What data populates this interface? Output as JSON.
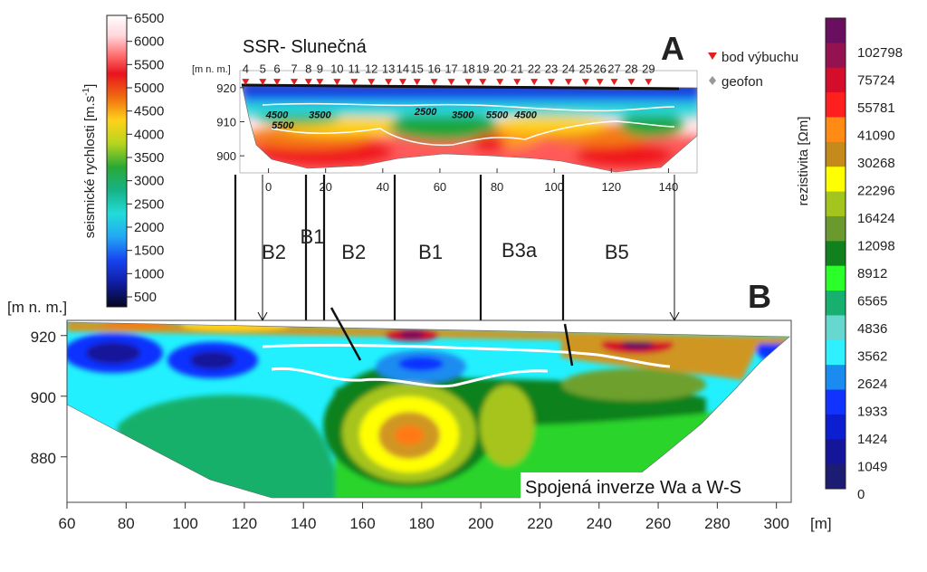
{
  "chart_data": [
    {
      "type": "heatmap",
      "panel": "A",
      "title": "SSR- Slunečná",
      "ylabel": "[m n. m.]",
      "yticks": [
        920,
        910,
        900
      ],
      "xticks": [
        0,
        20,
        40,
        60,
        80,
        100,
        120,
        140
      ],
      "xlim": [
        -10,
        150
      ],
      "ylim": [
        895,
        925
      ],
      "shot_points": [
        "4",
        "5",
        "6",
        "7",
        "8",
        "9",
        "10",
        "11",
        "12",
        "13",
        "14",
        "15",
        "16",
        "17",
        "18",
        "19",
        "20",
        "21",
        "22",
        "23",
        "24",
        "25",
        "26",
        "27",
        "28",
        "29"
      ],
      "shot_point_x": [
        -8,
        -2,
        3,
        9,
        14,
        18,
        24,
        30,
        36,
        42,
        47,
        52,
        58,
        64,
        70,
        75,
        81,
        87,
        93,
        99,
        105,
        111,
        116,
        121,
        127,
        133
      ],
      "isolines": [
        {
          "label": "4500",
          "x": 3,
          "y": 911
        },
        {
          "label": "3500",
          "x": 18,
          "y": 911
        },
        {
          "label": "5500",
          "x": 5,
          "y": 908
        },
        {
          "label": "2500",
          "x": 55,
          "y": 912
        },
        {
          "label": "3500",
          "x": 68,
          "y": 911
        },
        {
          "label": "5500",
          "x": 80,
          "y": 911
        },
        {
          "label": "4500",
          "x": 90,
          "y": 911
        }
      ],
      "legend": {
        "shot": "bod výbuchu",
        "geophone": "geofon"
      },
      "colorbar": {
        "label": "seismické rychlosti  [m.s-1]",
        "values": [
          6500,
          6000,
          5500,
          5000,
          4500,
          4000,
          3500,
          3000,
          2500,
          2000,
          1500,
          1000,
          500
        ]
      },
      "zone_boundaries_x": [
        -5,
        14,
        22,
        44,
        72,
        100,
        140
      ]
    },
    {
      "type": "heatmap",
      "panel": "B",
      "ylabel": "[m n. m.]",
      "xlabel": "[m]",
      "yticks": [
        920,
        900,
        880
      ],
      "xticks": [
        60,
        80,
        100,
        120,
        140,
        160,
        180,
        200,
        220,
        240,
        260,
        280,
        300
      ],
      "xlim": [
        60,
        305
      ],
      "ylim": [
        865,
        925
      ],
      "annotation": "Spojená inverze Wa a W-S",
      "zones": [
        {
          "label": "B2",
          "x": 130
        },
        {
          "label": "B1",
          "x": 143
        },
        {
          "label": "B2",
          "x": 157
        },
        {
          "label": "B1",
          "x": 183
        },
        {
          "label": "B3a",
          "x": 213
        },
        {
          "label": "B5",
          "x": 246
        }
      ],
      "colorbar": {
        "label": "rezistivita [Ωm]",
        "values": [
          102798,
          75724,
          55781,
          41090,
          30268,
          22296,
          16424,
          12098,
          8912,
          6565,
          4836,
          3562,
          2624,
          1933,
          1424,
          1049,
          0
        ],
        "colors": [
          "#6a0f5f",
          "#93124f",
          "#d40d2a",
          "#ff1f1f",
          "#ff8a14",
          "#c58a1c",
          "#ffff00",
          "#a3c51e",
          "#6a9a2e",
          "#11811e",
          "#2aff2a",
          "#17b06f",
          "#66d8d0",
          "#2ff0ff",
          "#1a8cf0",
          "#1133ff",
          "#0b1fd0",
          "#15159a",
          "#1c1c72"
        ]
      }
    }
  ],
  "labels": {
    "A": "A",
    "B": "B"
  }
}
